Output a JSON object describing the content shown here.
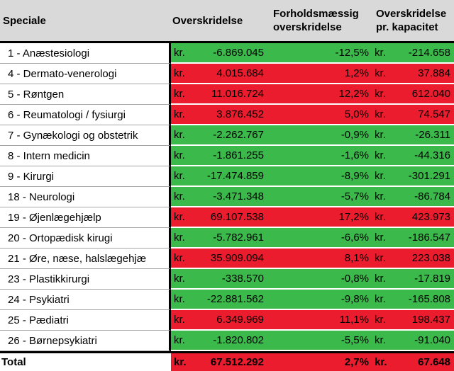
{
  "colors": {
    "positive_overrun_red": "#EB1C2D",
    "negative_overrun_green": "#3CB94B",
    "header_background": "#D9D9D9",
    "grid_black": "#000000",
    "row_divider_gray": "#A6A6A6"
  },
  "chart_data": {
    "type": "table",
    "columns": [
      "Speciale",
      "Overskridelse",
      "Forholdsmæssig overskridelse",
      "Overskridelse pr. kapacitet"
    ],
    "currency_prefix": "kr.",
    "rows": [
      {
        "speciale": "1 - Anæstesiologi",
        "overskridelse_kr": -6869045,
        "overskridelse_display": "-6.869.045",
        "pct": -12.5,
        "pct_display": "-12,5%",
        "pr_kapacitet_kr": -214658,
        "pr_kapacitet_display": "-214.658",
        "color": "green"
      },
      {
        "speciale": "4 - Dermato-venerologi",
        "overskridelse_kr": 4015684,
        "overskridelse_display": "4.015.684",
        "pct": 1.2,
        "pct_display": "1,2%",
        "pr_kapacitet_kr": 37884,
        "pr_kapacitet_display": "37.884",
        "color": "red"
      },
      {
        "speciale": "5 - Røntgen",
        "overskridelse_kr": 11016724,
        "overskridelse_display": "11.016.724",
        "pct": 12.2,
        "pct_display": "12,2%",
        "pr_kapacitet_kr": 612040,
        "pr_kapacitet_display": "612.040",
        "color": "red"
      },
      {
        "speciale": "6 - Reumatologi / fysiurgi",
        "overskridelse_kr": 3876452,
        "overskridelse_display": "3.876.452",
        "pct": 5.0,
        "pct_display": "5,0%",
        "pr_kapacitet_kr": 74547,
        "pr_kapacitet_display": "74.547",
        "color": "red"
      },
      {
        "speciale": "7 - Gynækologi og obstetrik",
        "overskridelse_kr": -2262767,
        "overskridelse_display": "-2.262.767",
        "pct": -0.9,
        "pct_display": "-0,9%",
        "pr_kapacitet_kr": -26311,
        "pr_kapacitet_display": "-26.311",
        "color": "green"
      },
      {
        "speciale": "8 - Intern medicin",
        "overskridelse_kr": -1861255,
        "overskridelse_display": "-1.861.255",
        "pct": -1.6,
        "pct_display": "-1,6%",
        "pr_kapacitet_kr": -44316,
        "pr_kapacitet_display": "-44.316",
        "color": "green"
      },
      {
        "speciale": "9 - Kirurgi",
        "overskridelse_kr": -17474859,
        "overskridelse_display": "-17.474.859",
        "pct": -8.9,
        "pct_display": "-8,9%",
        "pr_kapacitet_kr": -301291,
        "pr_kapacitet_display": "-301.291",
        "color": "green"
      },
      {
        "speciale": "18 - Neurologi",
        "overskridelse_kr": -3471348,
        "overskridelse_display": "-3.471.348",
        "pct": -5.7,
        "pct_display": "-5,7%",
        "pr_kapacitet_kr": -86784,
        "pr_kapacitet_display": "-86.784",
        "color": "green"
      },
      {
        "speciale": "19 - Øjenlægehjælp",
        "overskridelse_kr": 69107538,
        "overskridelse_display": "69.107.538",
        "pct": 17.2,
        "pct_display": "17,2%",
        "pr_kapacitet_kr": 423973,
        "pr_kapacitet_display": "423.973",
        "color": "red"
      },
      {
        "speciale": "20 - Ortopædisk kirugi",
        "overskridelse_kr": -5782961,
        "overskridelse_display": "-5.782.961",
        "pct": -6.6,
        "pct_display": "-6,6%",
        "pr_kapacitet_kr": -186547,
        "pr_kapacitet_display": "-186.547",
        "color": "green"
      },
      {
        "speciale": "21 - Øre, næse, halslægehjæ",
        "overskridelse_kr": 35909094,
        "overskridelse_display": "35.909.094",
        "pct": 8.1,
        "pct_display": "8,1%",
        "pr_kapacitet_kr": 223038,
        "pr_kapacitet_display": "223.038",
        "color": "red"
      },
      {
        "speciale": "23 - Plastikkirurgi",
        "overskridelse_kr": -338570,
        "overskridelse_display": "-338.570",
        "pct": -0.8,
        "pct_display": "-0,8%",
        "pr_kapacitet_kr": -17819,
        "pr_kapacitet_display": "-17.819",
        "color": "green"
      },
      {
        "speciale": "24 - Psykiatri",
        "overskridelse_kr": -22881562,
        "overskridelse_display": "-22.881.562",
        "pct": -9.8,
        "pct_display": "-9,8%",
        "pr_kapacitet_kr": -165808,
        "pr_kapacitet_display": "-165.808",
        "color": "green"
      },
      {
        "speciale": "25 - Pædiatri",
        "overskridelse_kr": 6349969,
        "overskridelse_display": "6.349.969",
        "pct": 11.1,
        "pct_display": "11,1%",
        "pr_kapacitet_kr": 198437,
        "pr_kapacitet_display": "198.437",
        "color": "red"
      },
      {
        "speciale": "26 - Børnepsykiatri",
        "overskridelse_kr": -1820802,
        "overskridelse_display": "-1.820.802",
        "pct": -5.5,
        "pct_display": "-5,5%",
        "pr_kapacitet_kr": -91040,
        "pr_kapacitet_display": "-91.040",
        "color": "green"
      }
    ],
    "total": {
      "speciale": "Total",
      "overskridelse_kr": 67512292,
      "overskridelse_display": "67.512.292",
      "pct": 2.7,
      "pct_display": "2,7%",
      "pr_kapacitet_kr": 67648,
      "pr_kapacitet_display": "67.648",
      "color": "red"
    }
  }
}
